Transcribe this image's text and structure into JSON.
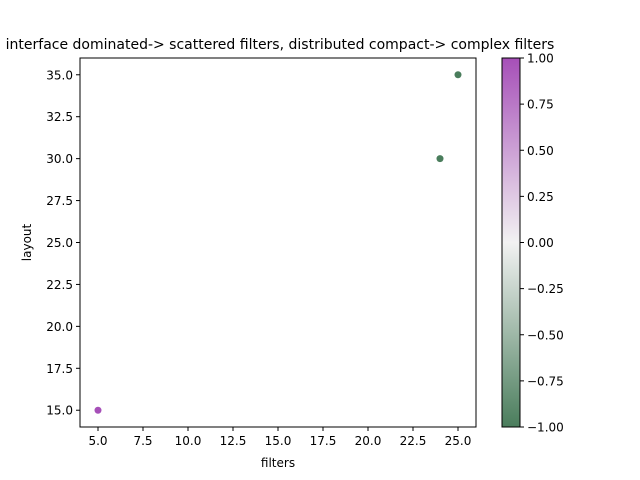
{
  "chart_data": {
    "type": "scatter",
    "title": "interface dominated-> scattered filters, distributed compact-> complex filters",
    "xlabel": "filters",
    "ylabel": "layout",
    "xlim": [
      4.0,
      26.0
    ],
    "ylim": [
      14.0,
      36.0
    ],
    "xticks": [
      5.0,
      7.5,
      10.0,
      12.5,
      15.0,
      17.5,
      20.0,
      22.5,
      25.0
    ],
    "xtick_labels": [
      "5.0",
      "7.5",
      "10.0",
      "12.5",
      "15.0",
      "17.5",
      "20.0",
      "22.5",
      "25.0"
    ],
    "yticks": [
      15.0,
      17.5,
      20.0,
      22.5,
      25.0,
      27.5,
      30.0,
      32.5,
      35.0
    ],
    "ytick_labels": [
      "15.0",
      "17.5",
      "20.0",
      "22.5",
      "25.0",
      "27.5",
      "30.0",
      "32.5",
      "35.0"
    ],
    "grid": false,
    "points": [
      {
        "x": 5,
        "y": 15,
        "value": 1.0
      },
      {
        "x": 24,
        "y": 30,
        "value": -1.0
      },
      {
        "x": 25,
        "y": 35,
        "value": -1.0
      }
    ],
    "colorbar": {
      "colormap": "diverging green-white-purple",
      "colors": [
        "#4a7d5c",
        "#f2f2f2",
        "#a64fb8"
      ],
      "range": [
        -1.0,
        1.0
      ],
      "ticks": [
        -1.0,
        -0.75,
        -0.5,
        -0.25,
        0.0,
        0.25,
        0.5,
        0.75,
        1.0
      ],
      "tick_labels": [
        "−1.00",
        "−0.75",
        "−0.50",
        "−0.25",
        "0.00",
        "0.25",
        "0.50",
        "0.75",
        "1.00"
      ]
    }
  }
}
